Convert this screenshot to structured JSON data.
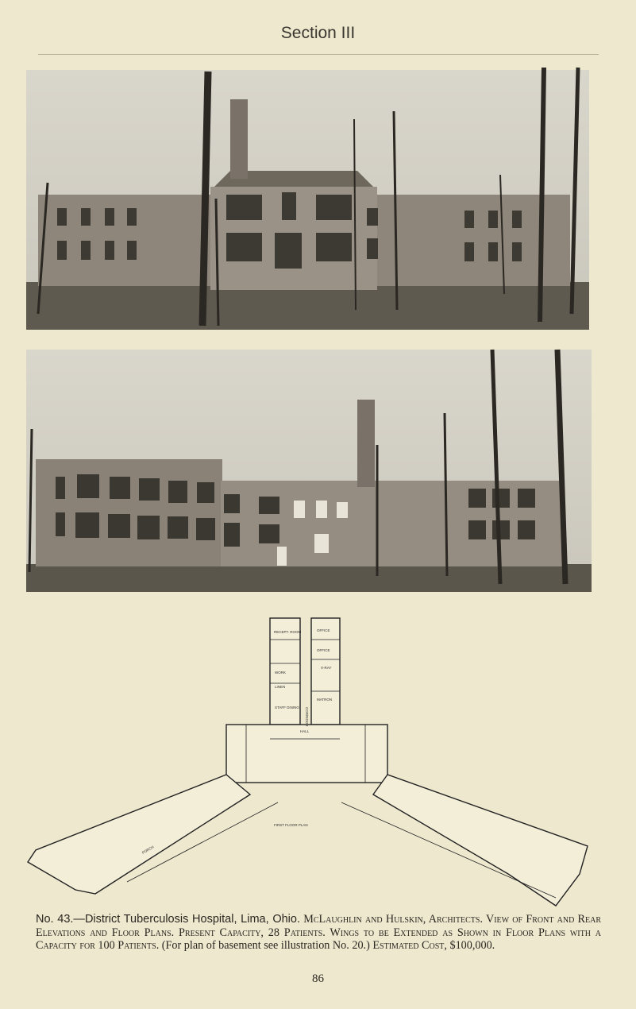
{
  "header": {
    "title": "Section III"
  },
  "plan": {
    "labels": [
      "RECEPT. ROOM",
      "OFFICE",
      "OFFICE",
      "WORK",
      "X-RAY",
      "LINEN",
      "CORRIDOR",
      "MATRON",
      "STAFF DINING",
      "HALL",
      "FIRST FLOOR PLAN",
      "PORCH"
    ]
  },
  "caption": {
    "number": "No. 43.—",
    "title": "District Tuberculosis Hospital, Lima, Ohio.",
    "text1": "McLaughlin and Hulskin, Architects. View of Front and Rear Elevations and Floor Plans. Present Capacity, 28 Patients. Wings to be Extended as Shown in Floor Plans with a Capacity for 100 Patients.",
    "note": "(For plan of basement see illustration No. 20.)",
    "text2": "Estimated Cost, $100,000."
  },
  "footer": {
    "page_number": "86"
  }
}
